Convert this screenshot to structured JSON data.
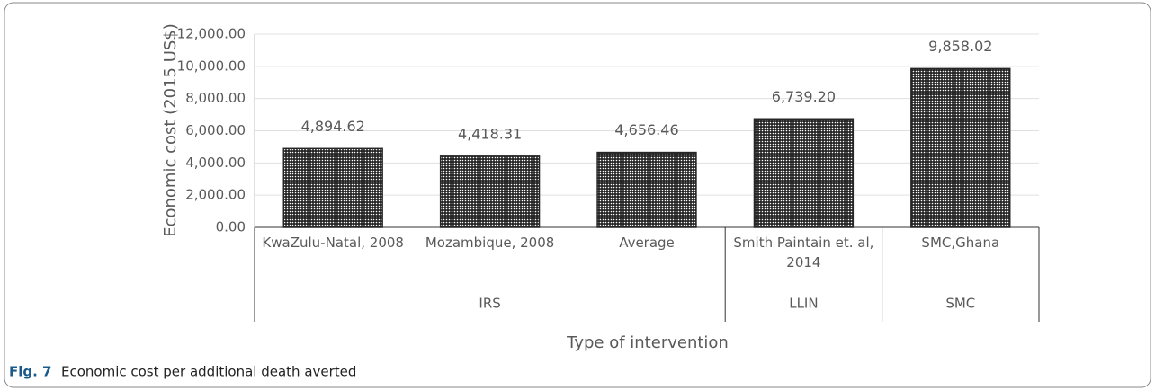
{
  "chart_data": {
    "type": "bar",
    "y_label": "Economic cost  (2015 US$)",
    "x_label": "Type of intervention",
    "caption_label": "Fig. 7",
    "caption": "Economic cost per additional death averted",
    "category_groups": [
      {
        "name": "IRS",
        "categories": [
          "KwaZulu-Natal, 2008",
          "Mozambique, 2008",
          "Average"
        ]
      },
      {
        "name": "LLIN",
        "categories": [
          "Smith Paintain et. al, 2014"
        ]
      },
      {
        "name": "SMC",
        "categories": [
          "SMC,Ghana"
        ]
      }
    ],
    "values": [
      4894.62,
      4418.31,
      4656.46,
      6739.2,
      9858.02
    ],
    "value_labels": [
      "4,894.62",
      "4,418.31",
      "4,656.46",
      "6,739.20",
      "9,858.02"
    ],
    "color": "#262626",
    "ylim": [
      0,
      12000
    ],
    "yticks": [
      {
        "value": 0,
        "label": "0.00"
      },
      {
        "value": 2000,
        "label": "2,000.00"
      },
      {
        "value": 4000,
        "label": "4,000.00"
      },
      {
        "value": 6000,
        "label": "6,000.00"
      },
      {
        "value": 8000,
        "label": "8,000.00"
      },
      {
        "value": 10000,
        "label": "10,000.00"
      },
      {
        "value": 12000,
        "label": "12,000.00"
      }
    ],
    "grid": true
  }
}
